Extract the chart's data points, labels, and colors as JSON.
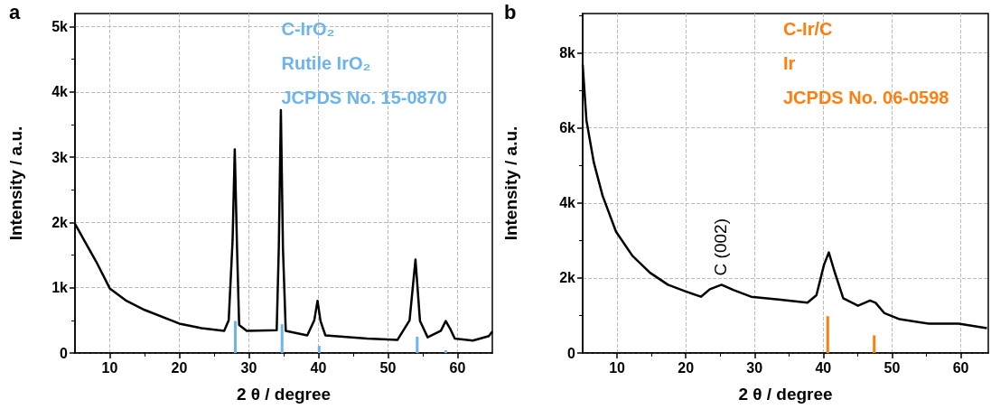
{
  "chart_data": [
    {
      "type": "line",
      "title": "a",
      "xlabel": "2 θ / degree",
      "ylabel": "Intensity / a.u.",
      "xlim": [
        5,
        65
      ],
      "xticks": [
        10,
        20,
        30,
        40,
        50,
        60
      ],
      "ylim": [
        0,
        5200
      ],
      "yticks": [
        0,
        {
          "value": 1000,
          "label": "1k"
        },
        {
          "value": 2000,
          "label": "2k"
        },
        {
          "value": 3000,
          "label": "3k"
        },
        {
          "value": 4000,
          "label": "4k"
        },
        {
          "value": 5000,
          "label": "5k"
        }
      ],
      "grid": true,
      "annotations": [
        "C-IrO₂",
        "Rutile IrO₂",
        "JCPDS No. 15-0870"
      ],
      "series": [
        {
          "color": "#000000",
          "x": [
            5,
            6.3,
            8.05,
            10,
            12.4,
            15,
            20,
            23.2,
            26.45,
            27.1,
            27.66,
            27.97,
            28.3,
            28.6,
            29.7,
            34,
            34.3,
            34.6,
            34.9,
            35.3,
            38.4,
            39.4,
            39.87,
            40.3,
            41,
            47,
            51.35,
            53.1,
            53.95,
            54.6,
            55.7,
            57.6,
            58.3,
            58.9,
            59.6,
            62.2,
            64.5,
            65
          ],
          "values": [
            1980,
            1730,
            1400,
            990,
            800,
            660,
            450,
            380,
            340,
            500,
            1730,
            3120,
            1600,
            430,
            340,
            350,
            1600,
            3720,
            1600,
            340,
            270,
            500,
            800,
            490,
            270,
            220,
            200,
            500,
            1430,
            490,
            240,
            340,
            490,
            380,
            220,
            190,
            260,
            330
          ]
        },
        {
          "type": "bar",
          "color": "#6cb4ee",
          "x": [
            28.05,
            34.77,
            40.1,
            54.2,
            58.3
          ],
          "values": [
            490,
            440,
            110,
            250,
            40
          ]
        }
      ]
    },
    {
      "type": "line",
      "title": "b",
      "xlabel": "2 θ / degree",
      "ylabel": "Intensity / a.u.",
      "xlim": [
        5,
        64
      ],
      "xticks": [
        10,
        20,
        30,
        40,
        50,
        60
      ],
      "ylim": [
        0,
        9050
      ],
      "yticks": [
        0,
        {
          "value": 2000,
          "label": "2k"
        },
        {
          "value": 4000,
          "label": "4k"
        },
        {
          "value": 6000,
          "label": "6k"
        },
        {
          "value": 8000,
          "label": "8k"
        }
      ],
      "grid": true,
      "annotations": [
        "C-Ir/C",
        "Ir",
        "JCPDS No. 06-0598",
        {
          "text": "C (002)",
          "x": 25.2,
          "y": 1820
        }
      ],
      "series": [
        {
          "color": "#000000",
          "x": [
            5,
            5.55,
            6.62,
            7.9,
            9.86,
            12.24,
            14.8,
            17.4,
            20,
            22.2,
            23.5,
            25.2,
            26.9,
            29.5,
            33.8,
            37.7,
            39,
            40.1,
            40.8,
            41.6,
            42.9,
            45.05,
            46.8,
            47.6,
            48.9,
            51.1,
            55.4,
            59.7,
            63.8
          ],
          "values": [
            7690,
            6200,
            5080,
            4190,
            3230,
            2590,
            2140,
            1820,
            1640,
            1500,
            1700,
            1820,
            1680,
            1500,
            1420,
            1340,
            1540,
            2350,
            2680,
            2190,
            1460,
            1260,
            1400,
            1340,
            1060,
            900,
            780,
            780,
            660
          ]
        },
        {
          "type": "bar",
          "color": "#ff7f0e",
          "x": [
            40.65,
            47.4
          ],
          "values": [
            980,
            470
          ]
        }
      ]
    }
  ]
}
